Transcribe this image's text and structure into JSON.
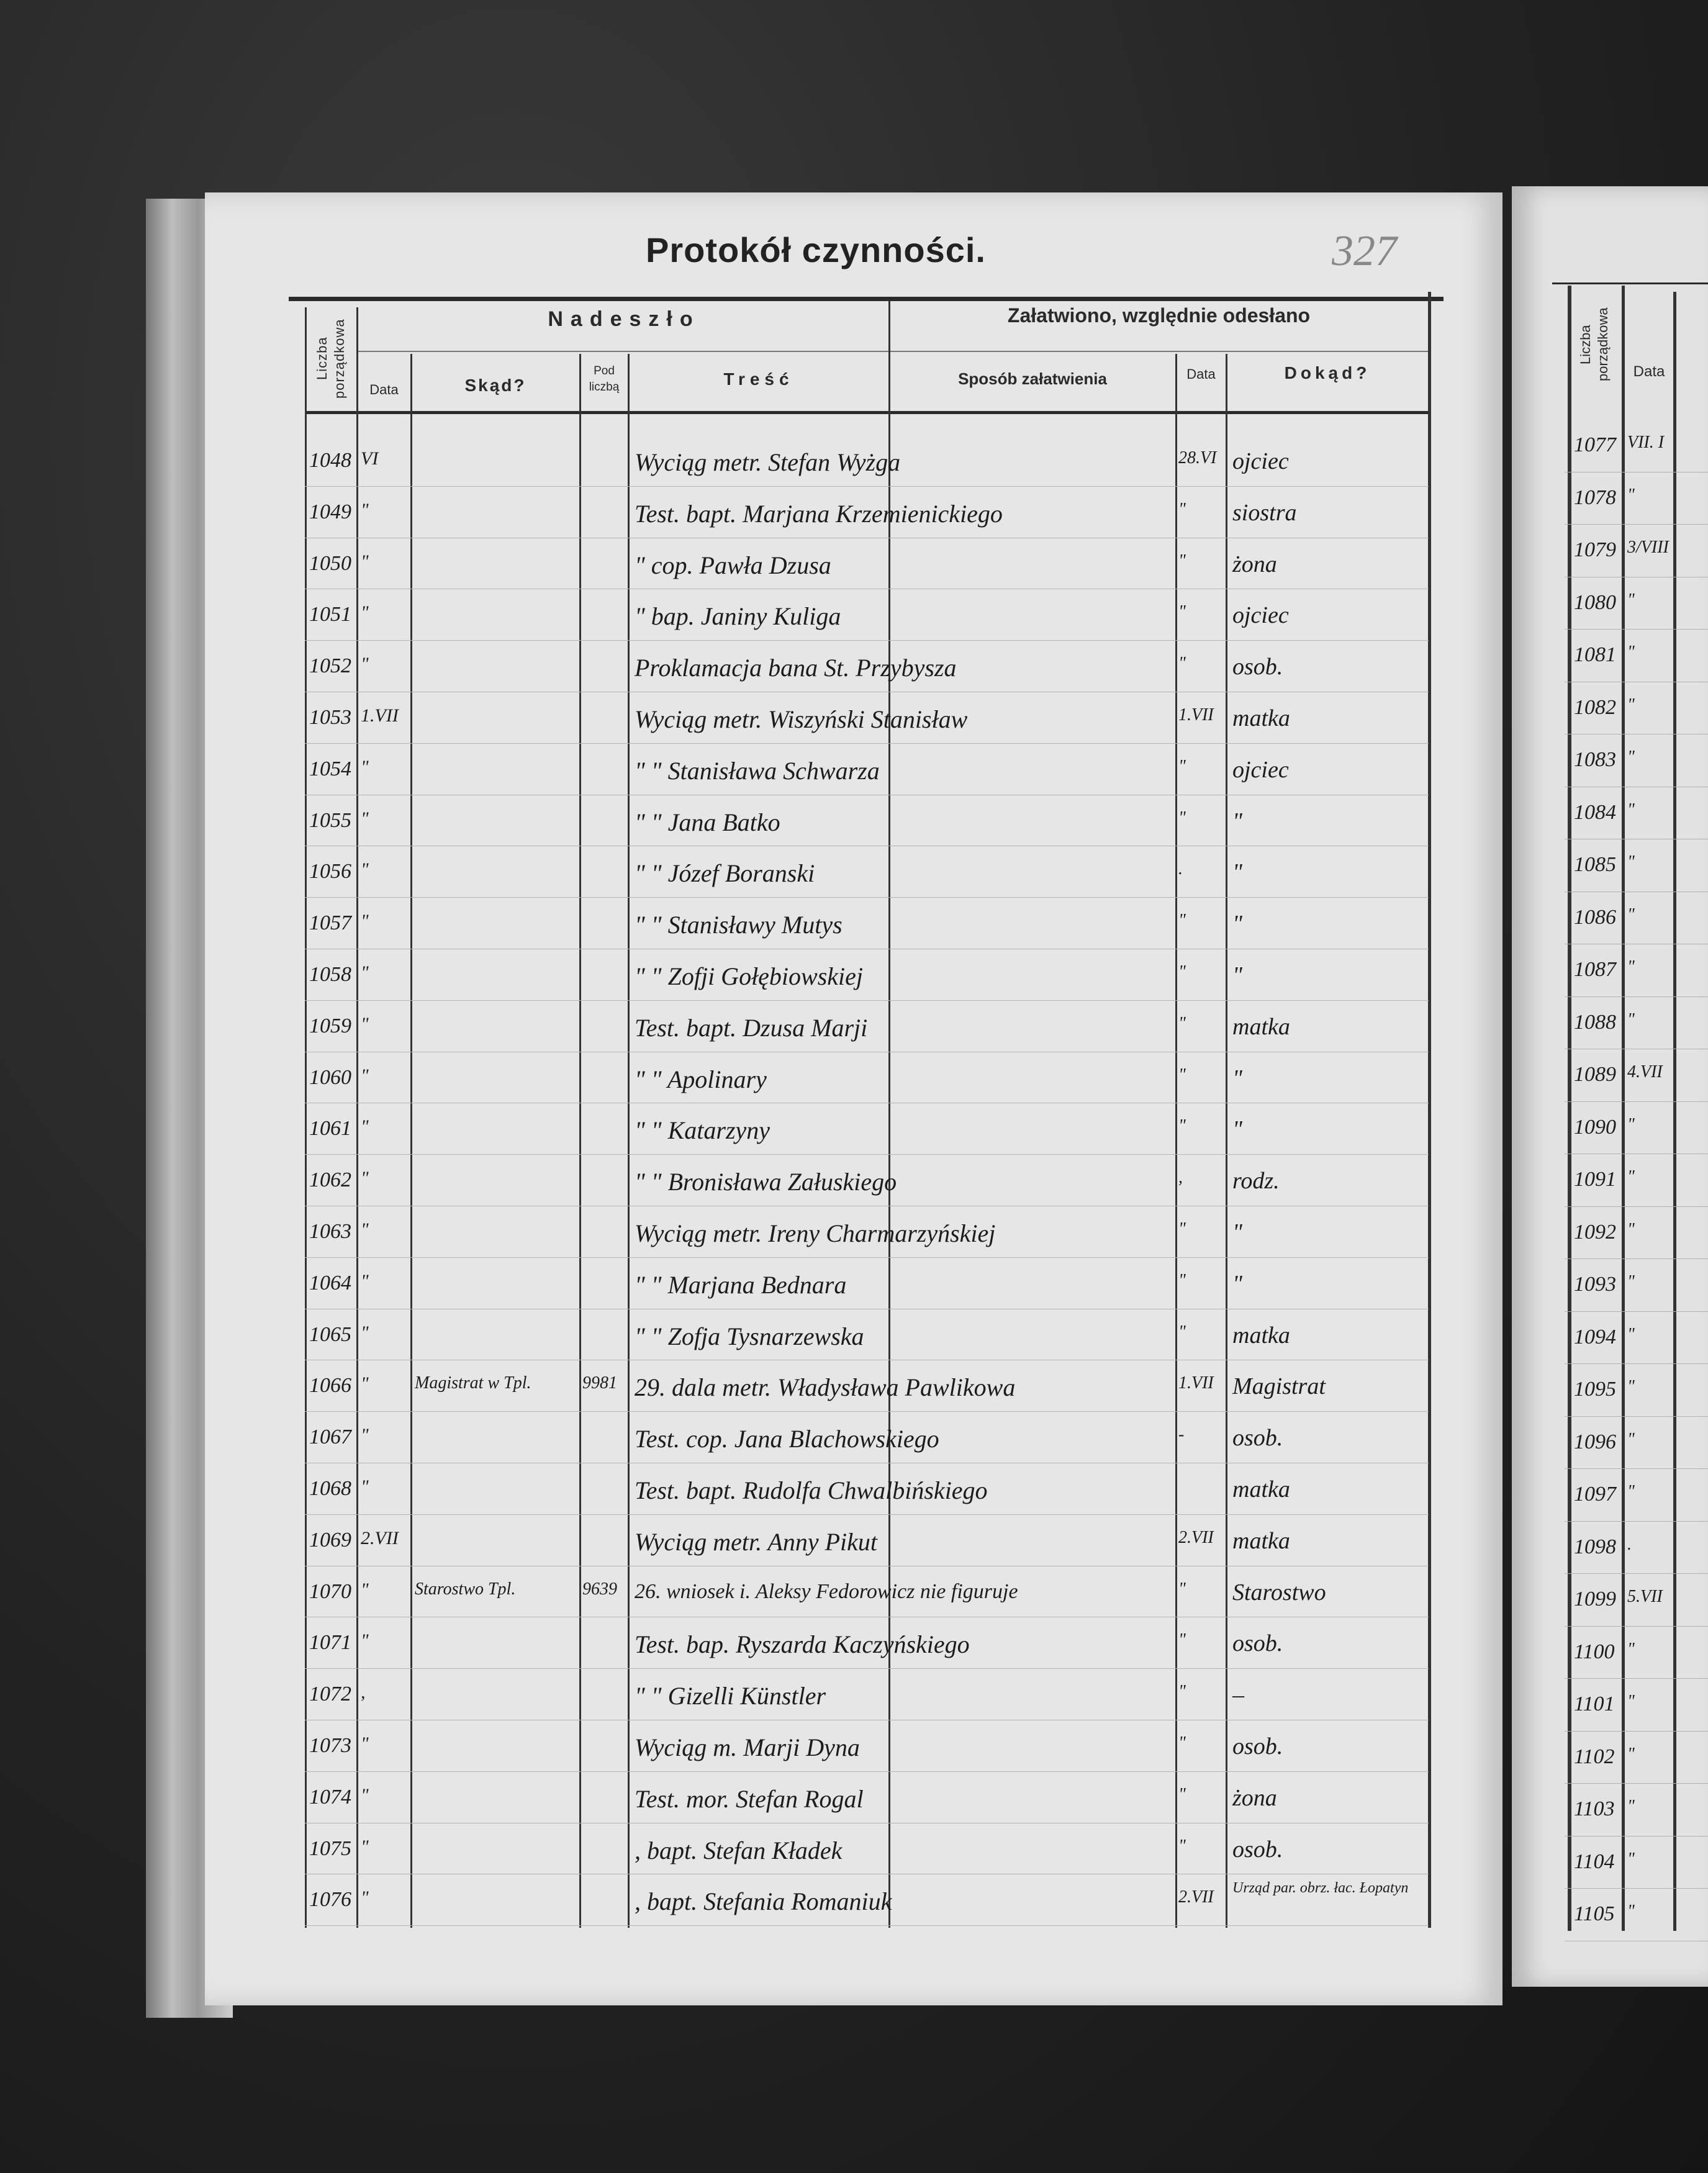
{
  "page": {
    "title": "Protokół czynności.",
    "page_number": "327"
  },
  "headers": {
    "liczba_porzadkowa": "Liczba porządkowa",
    "nadeszlo": "Nadeszło",
    "data": "Data",
    "skad": "Skąd?",
    "pod_liczba": "Pod liczbą",
    "tresc": "Treść",
    "zalatwiono": "Załatwiono, względnie odesłano",
    "sposob": "Sposób załatwienia",
    "data2": "Data",
    "dokad": "Dokąd?"
  },
  "rows": [
    {
      "no": "1048",
      "date": "VI",
      "from": "",
      "ref": "",
      "content": "Wyciąg metr. Stefan Wyżga",
      "date2": "28.VI",
      "to": "ojciec"
    },
    {
      "no": "1049",
      "date": "\"",
      "from": "",
      "ref": "",
      "content": "Test. bapt. Marjana Krzemienickiego",
      "date2": "\"",
      "to": "siostra"
    },
    {
      "no": "1050",
      "date": "\"",
      "from": "",
      "ref": "",
      "content": "\" cop. Pawła Dzusa",
      "date2": "\"",
      "to": "żona"
    },
    {
      "no": "1051",
      "date": "\"",
      "from": "",
      "ref": "",
      "content": "\" bap. Janiny Kuliga",
      "date2": "\"",
      "to": "ojciec"
    },
    {
      "no": "1052",
      "date": "\"",
      "from": "",
      "ref": "",
      "content": "Proklamacja bana St. Przybysza",
      "date2": "\"",
      "to": "osob."
    },
    {
      "no": "1053",
      "date": "1.VII",
      "from": "",
      "ref": "",
      "content": "Wyciąg metr. Wiszyński Stanisław",
      "date2": "1.VII",
      "to": "matka"
    },
    {
      "no": "1054",
      "date": "\"",
      "from": "",
      "ref": "",
      "content": "\" \" Stanisława Schwarza",
      "date2": "\"",
      "to": "ojciec"
    },
    {
      "no": "1055",
      "date": "\"",
      "from": "",
      "ref": "",
      "content": "\" \" Jana Batko",
      "date2": "\"",
      "to": "\""
    },
    {
      "no": "1056",
      "date": "\"",
      "from": "",
      "ref": "",
      "content": "\" \" Józef Boranski",
      "date2": ".",
      "to": "\""
    },
    {
      "no": "1057",
      "date": "\"",
      "from": "",
      "ref": "",
      "content": "\" \" Stanisławy Mutys",
      "date2": "\"",
      "to": "\""
    },
    {
      "no": "1058",
      "date": "\"",
      "from": "",
      "ref": "",
      "content": "\" \" Zofji Gołębiowskiej",
      "date2": "\"",
      "to": "\""
    },
    {
      "no": "1059",
      "date": "\"",
      "from": "",
      "ref": "",
      "content": "Test. bapt. Dzusa Marji",
      "date2": "\"",
      "to": "matka"
    },
    {
      "no": "1060",
      "date": "\"",
      "from": "",
      "ref": "",
      "content": "\" \" Apolinary",
      "date2": "\"",
      "to": "\""
    },
    {
      "no": "1061",
      "date": "\"",
      "from": "",
      "ref": "",
      "content": "\" \" Katarzyny",
      "date2": "\"",
      "to": "\""
    },
    {
      "no": "1062",
      "date": "\"",
      "from": "",
      "ref": "",
      "content": "\" \" Bronisława Załuskiego",
      "date2": ",",
      "to": "rodz."
    },
    {
      "no": "1063",
      "date": "\"",
      "from": "",
      "ref": "",
      "content": "Wyciąg metr. Ireny Charmarzyńskiej",
      "date2": "\"",
      "to": "\""
    },
    {
      "no": "1064",
      "date": "\"",
      "from": "",
      "ref": "",
      "content": "\" \" Marjana Bednara",
      "date2": "\"",
      "to": "\""
    },
    {
      "no": "1065",
      "date": "\"",
      "from": "",
      "ref": "",
      "content": "\" \" Zofja Tysnarzewska",
      "date2": "\"",
      "to": "matka"
    },
    {
      "no": "1066",
      "date": "\"",
      "from": "Magistrat w Tpl.",
      "ref": "9981",
      "content": "29. dala metr. Władysława Pawlikowa",
      "date2": "1.VII",
      "to": "Magistrat"
    },
    {
      "no": "1067",
      "date": "\"",
      "from": "",
      "ref": "",
      "content": "Test. cop. Jana Blachowskiego",
      "date2": "-",
      "to": "osob."
    },
    {
      "no": "1068",
      "date": "\"",
      "from": "",
      "ref": "",
      "content": "Test. bapt. Rudolfa Chwalbińskiego",
      "date2": "",
      "to": "matka"
    },
    {
      "no": "1069",
      "date": "2.VII",
      "from": "",
      "ref": "",
      "content": "Wyciąg metr. Anny Pikut",
      "date2": "2.VII",
      "to": "matka"
    },
    {
      "no": "1070",
      "date": "\"",
      "from": "Starostwo Tpl.",
      "ref": "9639",
      "content": "26. wniosek i. Aleksy Fedorowicz nie figuruje",
      "date2": "\"",
      "to": "Starostwo"
    },
    {
      "no": "1071",
      "date": "\"",
      "from": "",
      "ref": "",
      "content": "Test. bap. Ryszarda Kaczyńskiego",
      "date2": "\"",
      "to": "osob."
    },
    {
      "no": "1072",
      "date": ",",
      "from": "",
      "ref": "",
      "content": "\" \" Gizelli Künstler",
      "date2": "\"",
      "to": "–"
    },
    {
      "no": "1073",
      "date": "\"",
      "from": "",
      "ref": "",
      "content": "Wyciąg m. Marji Dyna",
      "date2": "\"",
      "to": "osob."
    },
    {
      "no": "1074",
      "date": "\"",
      "from": "",
      "ref": "",
      "content": "Test. mor. Stefan Rogal",
      "date2": "\"",
      "to": "żona"
    },
    {
      "no": "1075",
      "date": "\"",
      "from": "",
      "ref": "",
      "content": ", bapt. Stefan Kładek",
      "date2": "\"",
      "to": "osob."
    },
    {
      "no": "1076",
      "date": "\"",
      "from": "",
      "ref": "",
      "content": ", bapt. Stefania Romaniuk",
      "date2": "2.VII",
      "to": "Urząd par. obrz. łac. Łopatyn"
    }
  ],
  "right_page": {
    "headers": {
      "liczba_porzadkowa": "Liczba porządkowa",
      "data": "Data"
    },
    "rows": [
      {
        "no": "1077",
        "date": "VII. I"
      },
      {
        "no": "1078",
        "date": "\""
      },
      {
        "no": "1079",
        "date": "3/VIII"
      },
      {
        "no": "1080",
        "date": "\""
      },
      {
        "no": "1081",
        "date": "\""
      },
      {
        "no": "1082",
        "date": "\""
      },
      {
        "no": "1083",
        "date": "\""
      },
      {
        "no": "1084",
        "date": "\""
      },
      {
        "no": "1085",
        "date": "\""
      },
      {
        "no": "1086",
        "date": "\""
      },
      {
        "no": "1087",
        "date": "\""
      },
      {
        "no": "1088",
        "date": "\""
      },
      {
        "no": "1089",
        "date": "4.VII"
      },
      {
        "no": "1090",
        "date": "\""
      },
      {
        "no": "1091",
        "date": "\""
      },
      {
        "no": "1092",
        "date": "\""
      },
      {
        "no": "1093",
        "date": "\""
      },
      {
        "no": "1094",
        "date": "\""
      },
      {
        "no": "1095",
        "date": "\""
      },
      {
        "no": "1096",
        "date": "\""
      },
      {
        "no": "1097",
        "date": "\""
      },
      {
        "no": "1098",
        "date": "."
      },
      {
        "no": "1099",
        "date": "5.VII"
      },
      {
        "no": "1100",
        "date": "\""
      },
      {
        "no": "1101",
        "date": "\""
      },
      {
        "no": "1102",
        "date": "\""
      },
      {
        "no": "1103",
        "date": "\""
      },
      {
        "no": "1104",
        "date": "\""
      },
      {
        "no": "1105",
        "date": "\""
      }
    ]
  }
}
